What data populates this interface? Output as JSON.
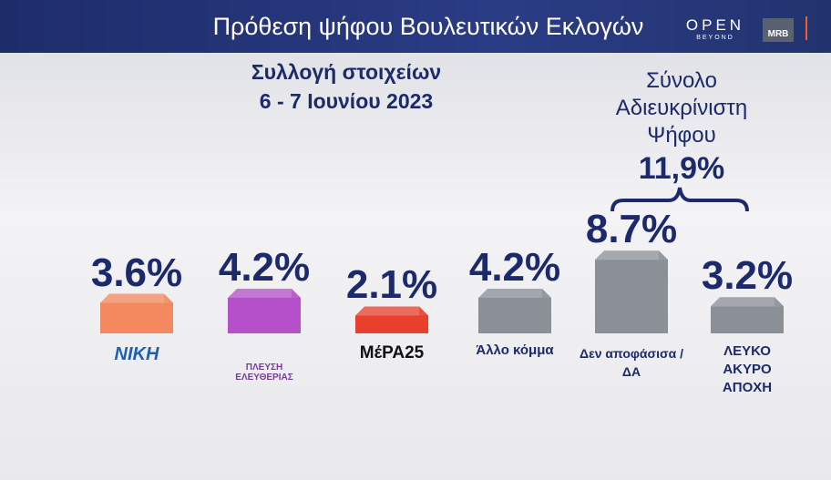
{
  "header": {
    "title": "Πρόθεση ψήφου Βουλευτικών Εκλογών",
    "brand": "OPEN",
    "brand_tagline": "BEYOND",
    "partner": "MRB"
  },
  "chart_data": {
    "type": "bar",
    "title": "Συλλογή στοιχείων",
    "subtitle": "6 - 7 Ιουνίου 2023",
    "categories": [
      "ΝΙΚΗ",
      "ΠΛΕΥΣΗ ΕΛΕΥΘΕΡΙΑΣ",
      "ΜέΡΑ25",
      "Άλλο κόμμα",
      "Δεν αποφάσισα /ΔΑ",
      "ΛΕΥΚΟ ΑΚΥΡΟ ΑΠΟΧΗ"
    ],
    "values": [
      3.6,
      4.2,
      2.1,
      4.2,
      8.7,
      3.2
    ],
    "value_labels": [
      "3.6%",
      "4.2%",
      "2.1%",
      "4.2%",
      "8.7%",
      "3.2%"
    ],
    "colors": [
      "#f4895f",
      "#b64fca",
      "#e8402c",
      "#8b9097",
      "#8b9097",
      "#8b9097"
    ],
    "annotation": {
      "text": "Σύνολο Αδιευκρίνιστη Ψήφου",
      "value": 11.9,
      "label": "11,9%"
    }
  }
}
